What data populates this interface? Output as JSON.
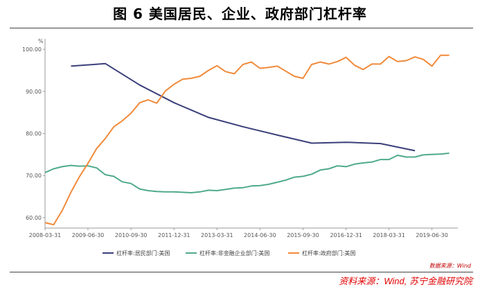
{
  "page": {
    "title": "图 6  美国居民、企业、政府部门杠杆率",
    "source": "资料来源：Wind, 苏宁金融研究院",
    "inner_source": "数据来源：Wind"
  },
  "colors": {
    "household": "#3a3f7a",
    "corporate": "#4faa8c",
    "government": "#f08a3a",
    "axis": "#999999",
    "text": "#555555"
  },
  "chart_data": {
    "type": "line",
    "title": "",
    "ylabel": "%",
    "xlabel": "",
    "ylim": [
      57.5,
      102.5
    ],
    "yticks": [
      60.0,
      70.0,
      80.0,
      90.0,
      100.0
    ],
    "ytick_labels": [
      "60.00",
      "70.00",
      "80.00",
      "90.00",
      "100.00"
    ],
    "xlim": [
      "2008-03-31",
      "2020-03-31"
    ],
    "xtick_labels": [
      "2008-03-31",
      "2009-06-30",
      "2010-09-30",
      "2011-12-31",
      "2013-03-31",
      "2014-06-30",
      "2015-09-30",
      "2016-12-31",
      "2018-03-31",
      "2019-06-30"
    ],
    "grid": false,
    "legend_position": "bottom",
    "series": [
      {
        "name": "杠杆率:居民部门:美国",
        "color_key": "household",
        "x": [
          "2009-01-01",
          "2010-01-01",
          "2011-01-01",
          "2012-01-01",
          "2013-01-01",
          "2014-01-01",
          "2015-01-01",
          "2016-01-01",
          "2017-01-01",
          "2018-01-01",
          "2019-01-01"
        ],
        "values": [
          96.0,
          96.6,
          91.5,
          87.3,
          83.8,
          81.6,
          79.6,
          77.7,
          77.9,
          77.6,
          75.9
        ]
      },
      {
        "name": "杠杆率:非金融企业部门:美国",
        "color_key": "corporate",
        "x": [
          "2008-03-31",
          "2008-06-30",
          "2008-09-30",
          "2008-12-31",
          "2009-03-31",
          "2009-06-30",
          "2009-09-30",
          "2009-12-31",
          "2010-03-31",
          "2010-06-30",
          "2010-09-30",
          "2010-12-31",
          "2011-03-31",
          "2011-06-30",
          "2011-09-30",
          "2011-12-31",
          "2012-03-31",
          "2012-06-30",
          "2012-09-30",
          "2012-12-31",
          "2013-03-31",
          "2013-06-30",
          "2013-09-30",
          "2013-12-31",
          "2014-03-31",
          "2014-06-30",
          "2014-09-30",
          "2014-12-31",
          "2015-03-31",
          "2015-06-30",
          "2015-09-30",
          "2015-12-31",
          "2016-03-31",
          "2016-06-30",
          "2016-09-30",
          "2016-12-31",
          "2017-03-31",
          "2017-06-30",
          "2017-09-30",
          "2017-12-31",
          "2018-03-31",
          "2018-06-30",
          "2018-09-30",
          "2018-12-31",
          "2019-03-31",
          "2019-06-30",
          "2019-09-30",
          "2019-12-31"
        ],
        "values": [
          70.7,
          71.6,
          72.1,
          72.4,
          72.2,
          72.3,
          71.8,
          70.2,
          69.8,
          68.5,
          68.1,
          66.8,
          66.4,
          66.2,
          66.1,
          66.1,
          66.0,
          65.9,
          66.1,
          66.5,
          66.4,
          66.7,
          67.0,
          67.1,
          67.5,
          67.6,
          67.9,
          68.4,
          68.9,
          69.6,
          69.8,
          70.3,
          71.3,
          71.6,
          72.3,
          72.1,
          72.7,
          73.0,
          73.2,
          73.8,
          73.8,
          74.8,
          74.4,
          74.4,
          74.9,
          75.0,
          75.1,
          75.3
        ]
      },
      {
        "name": "杠杆率:政府部门:美国",
        "color_key": "government",
        "x": [
          "2008-03-31",
          "2008-06-30",
          "2008-09-30",
          "2008-12-31",
          "2009-03-31",
          "2009-06-30",
          "2009-09-30",
          "2009-12-31",
          "2010-03-31",
          "2010-06-30",
          "2010-09-30",
          "2010-12-31",
          "2011-03-31",
          "2011-06-30",
          "2011-09-30",
          "2011-12-31",
          "2012-03-31",
          "2012-06-30",
          "2012-09-30",
          "2012-12-31",
          "2013-03-31",
          "2013-06-30",
          "2013-09-30",
          "2013-12-31",
          "2014-03-31",
          "2014-06-30",
          "2014-09-30",
          "2014-12-31",
          "2015-03-31",
          "2015-06-30",
          "2015-09-30",
          "2015-12-31",
          "2016-03-31",
          "2016-06-30",
          "2016-09-30",
          "2016-12-31",
          "2017-03-31",
          "2017-06-30",
          "2017-09-30",
          "2017-12-31",
          "2018-03-31",
          "2018-06-30",
          "2018-09-30",
          "2018-12-31",
          "2019-03-31",
          "2019-06-30",
          "2019-09-30",
          "2019-12-31"
        ],
        "values": [
          58.8,
          58.3,
          61.7,
          66.0,
          69.7,
          72.9,
          76.4,
          78.8,
          81.6,
          83.0,
          84.8,
          87.3,
          88.0,
          87.2,
          90.1,
          91.7,
          92.9,
          93.1,
          93.6,
          95.0,
          96.1,
          94.7,
          94.2,
          96.4,
          97.0,
          95.5,
          95.7,
          96.0,
          94.8,
          93.6,
          93.1,
          96.4,
          97.0,
          96.5,
          97.1,
          98.1,
          96.2,
          95.2,
          96.5,
          96.5,
          98.3,
          97.1,
          97.3,
          98.2,
          97.6,
          96.0,
          98.6,
          98.6
        ]
      }
    ]
  }
}
